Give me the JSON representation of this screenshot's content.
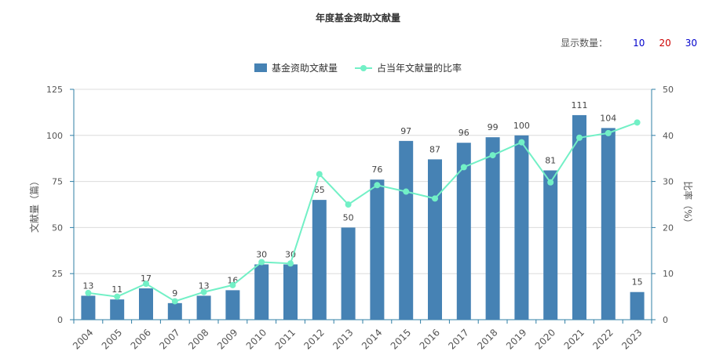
{
  "title": "年度基金资助文献量",
  "controls": {
    "display_label": "显示数量：",
    "options": [
      {
        "label": "10",
        "color": "#0000cc"
      },
      {
        "label": "20",
        "color": "#cc0000"
      },
      {
        "label": "30",
        "color": "#0000cc"
      }
    ]
  },
  "chart_data": {
    "type": "bar",
    "title": "年度基金资助文献量",
    "categories": [
      "2004",
      "2005",
      "2006",
      "2007",
      "2008",
      "2009",
      "2010",
      "2011",
      "2012",
      "2013",
      "2014",
      "2015",
      "2016",
      "2017",
      "2018",
      "2019",
      "2020",
      "2021",
      "2022",
      "2023"
    ],
    "series": [
      {
        "name": "基金资助文献量",
        "type": "bar",
        "axis": "left",
        "color": "#4682b4",
        "values": [
          13,
          11,
          17,
          9,
          13,
          16,
          30,
          30,
          65,
          50,
          76,
          97,
          87,
          96,
          99,
          100,
          81,
          111,
          104,
          15
        ]
      },
      {
        "name": "占当年文献量的比率",
        "type": "line",
        "axis": "right",
        "color": "#72f0c6",
        "values": [
          5.8,
          5.0,
          7.8,
          4.0,
          6.0,
          7.5,
          12.5,
          12.2,
          31.6,
          25.0,
          29.2,
          27.8,
          26.3,
          33.1,
          35.7,
          38.5,
          29.8,
          39.5,
          40.5,
          42.8
        ]
      }
    ],
    "ylabel": "文献量（篇）",
    "y2label": "比率（%）",
    "ylim": [
      0,
      125
    ],
    "y2lim": [
      0,
      50
    ],
    "yticks": [
      0,
      25,
      50,
      75,
      100,
      125
    ],
    "y2ticks": [
      0,
      10,
      20,
      30,
      40,
      50
    ],
    "grid": true,
    "legend_position": "top-center"
  }
}
